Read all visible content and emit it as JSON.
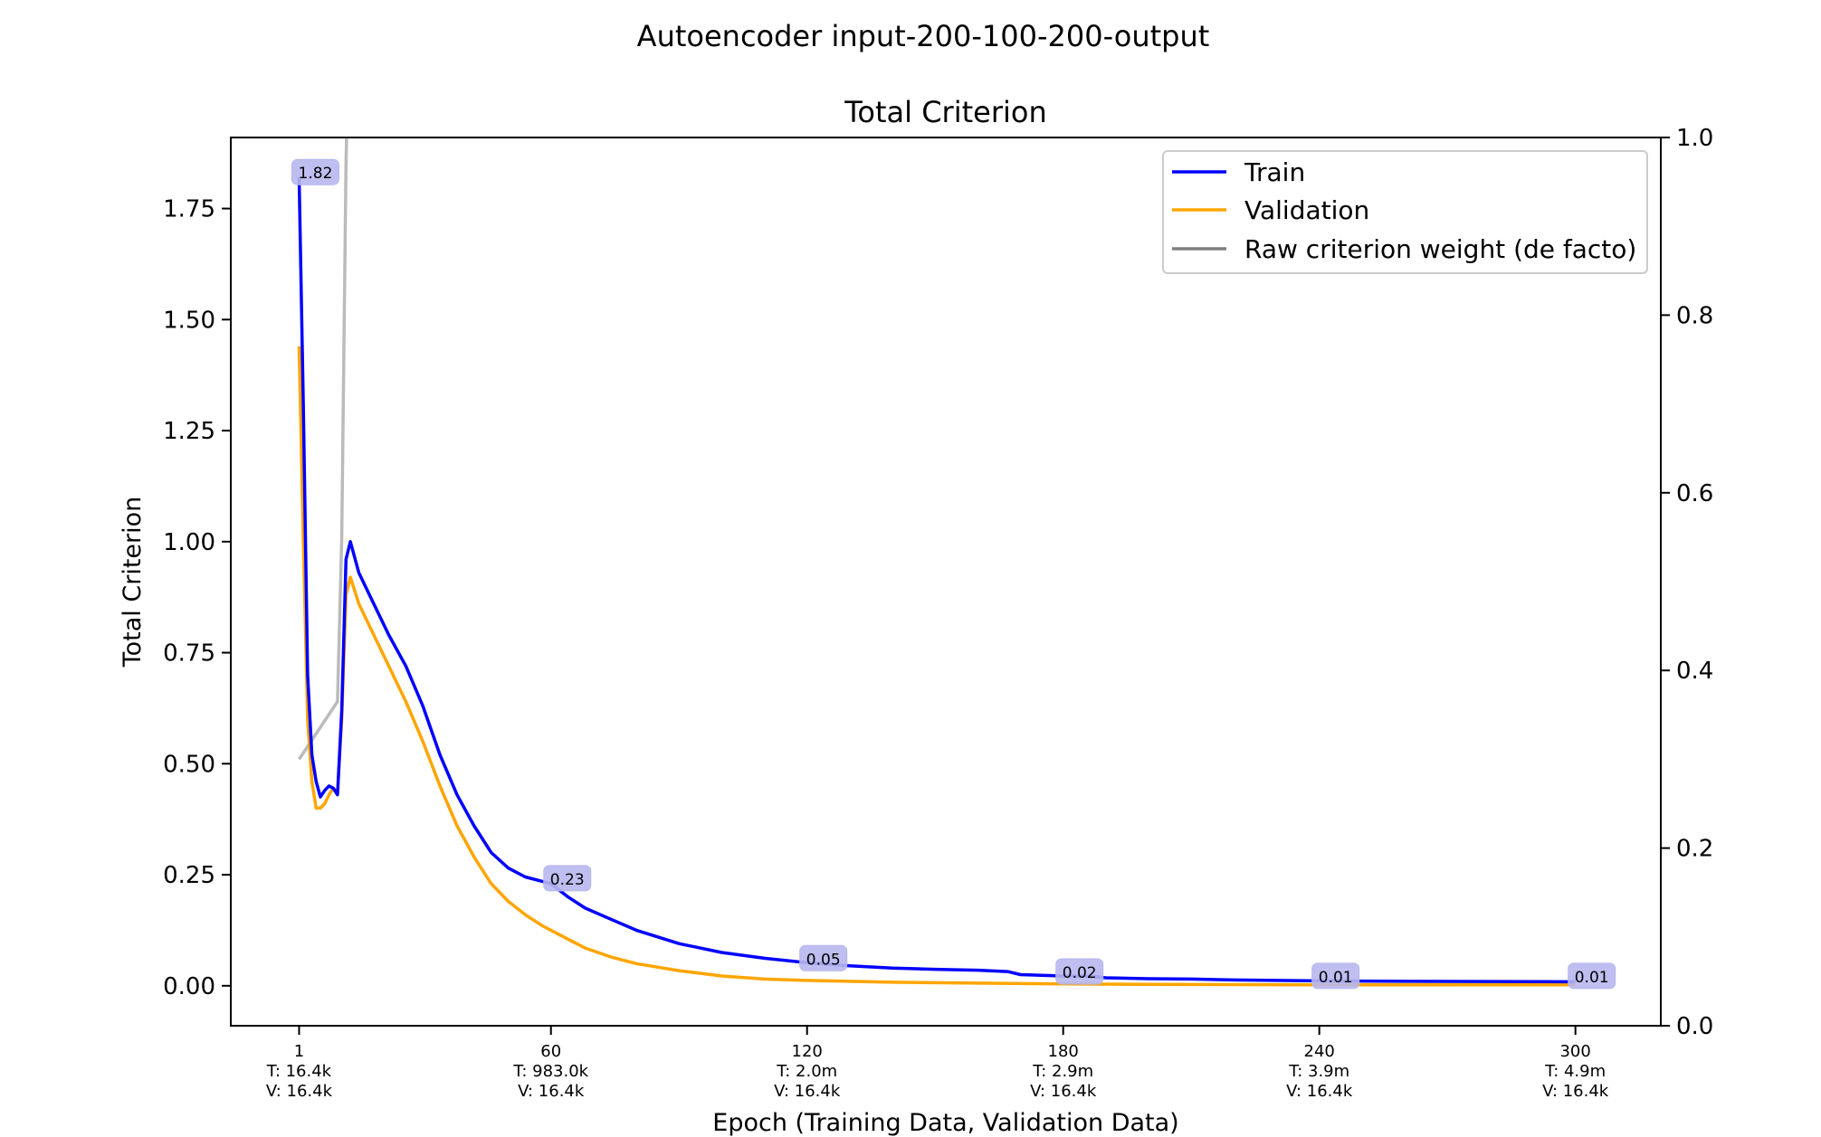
{
  "chart_data": {
    "type": "line",
    "suptitle": "Autoencoder input-200-100-200-output",
    "title": "Total Criterion",
    "xlabel": "Epoch (Training Data, Validation Data)",
    "ylabel": "Total Criterion",
    "xlim": [
      -15,
      320
    ],
    "ylim": [
      -0.09,
      1.91
    ],
    "y2lim": [
      0.0,
      1.0
    ],
    "yticks": [
      "0.00",
      "0.25",
      "0.50",
      "0.75",
      "1.00",
      "1.25",
      "1.50",
      "1.75"
    ],
    "y2ticks": [
      "0.0",
      "0.2",
      "0.4",
      "0.6",
      "0.8",
      "1.0"
    ],
    "xticks": [
      {
        "x": 1,
        "lines": [
          "1",
          "T: 16.4k",
          "V: 16.4k"
        ]
      },
      {
        "x": 60,
        "lines": [
          "60",
          "T: 983.0k",
          "V: 16.4k"
        ]
      },
      {
        "x": 120,
        "lines": [
          "120",
          "T: 2.0m",
          "V: 16.4k"
        ]
      },
      {
        "x": 180,
        "lines": [
          "180",
          "T: 2.9m",
          "V: 16.4k"
        ]
      },
      {
        "x": 240,
        "lines": [
          "240",
          "T: 3.9m",
          "V: 16.4k"
        ]
      },
      {
        "x": 300,
        "lines": [
          "300",
          "T: 4.9m",
          "V: 16.4k"
        ]
      }
    ],
    "legend": {
      "position": "top-right",
      "entries": [
        "Train",
        "Validation",
        "Raw criterion weight (de facto)"
      ]
    },
    "colors": {
      "train": "#0000ff",
      "validation": "#ffa500",
      "weight": "#bbbbbb",
      "label_box": "#b7b7ee"
    },
    "series": [
      {
        "name": "Train",
        "axis": "left",
        "x": [
          1,
          2,
          3,
          4,
          5,
          6,
          7,
          8,
          9,
          10,
          11,
          12,
          13,
          15,
          18,
          22,
          26,
          30,
          34,
          38,
          42,
          46,
          50,
          54,
          58,
          60,
          64,
          68,
          74,
          80,
          90,
          100,
          110,
          120,
          130,
          140,
          150,
          160,
          167,
          170,
          180,
          187,
          190,
          200,
          210,
          220,
          240,
          260,
          280,
          300
        ],
        "y": [
          1.82,
          1.3,
          0.7,
          0.52,
          0.46,
          0.425,
          0.44,
          0.45,
          0.445,
          0.43,
          0.62,
          0.96,
          1.0,
          0.93,
          0.87,
          0.79,
          0.72,
          0.63,
          0.52,
          0.43,
          0.36,
          0.3,
          0.265,
          0.245,
          0.235,
          0.23,
          0.2,
          0.175,
          0.15,
          0.125,
          0.095,
          0.075,
          0.062,
          0.052,
          0.045,
          0.04,
          0.037,
          0.035,
          0.032,
          0.025,
          0.022,
          0.021,
          0.018,
          0.016,
          0.015,
          0.013,
          0.011,
          0.01,
          0.0095,
          0.009
        ]
      },
      {
        "name": "Validation",
        "axis": "left",
        "x": [
          1,
          2,
          3,
          4,
          5,
          6,
          7,
          8,
          9,
          10,
          11,
          12,
          13,
          15,
          18,
          22,
          26,
          30,
          34,
          38,
          42,
          46,
          50,
          54,
          58,
          60,
          64,
          68,
          74,
          80,
          90,
          100,
          110,
          120,
          130,
          140,
          160,
          180,
          200,
          240,
          300
        ],
        "y": [
          1.44,
          1.0,
          0.6,
          0.46,
          0.4,
          0.4,
          0.41,
          0.43,
          0.445,
          0.435,
          0.6,
          0.88,
          0.92,
          0.86,
          0.8,
          0.72,
          0.64,
          0.55,
          0.45,
          0.36,
          0.29,
          0.23,
          0.19,
          0.16,
          0.135,
          0.125,
          0.105,
          0.085,
          0.065,
          0.05,
          0.034,
          0.022,
          0.015,
          0.012,
          0.01,
          0.008,
          0.006,
          0.004,
          0.003,
          0.002,
          0.002
        ]
      },
      {
        "name": "Raw criterion weight (de facto)",
        "axis": "right",
        "x": [
          1,
          10,
          11,
          12,
          13
        ],
        "y": [
          0.3,
          0.365,
          0.55,
          0.97,
          1.2
        ]
      }
    ],
    "data_labels": [
      {
        "x": 1,
        "y": 1.82,
        "text": "1.82"
      },
      {
        "x": 60,
        "y": 0.23,
        "text": "0.23"
      },
      {
        "x": 120,
        "y": 0.05,
        "text": "0.05"
      },
      {
        "x": 180,
        "y": 0.02,
        "text": "0.02"
      },
      {
        "x": 240,
        "y": 0.01,
        "text": "0.01"
      },
      {
        "x": 300,
        "y": 0.01,
        "text": "0.01"
      }
    ]
  }
}
